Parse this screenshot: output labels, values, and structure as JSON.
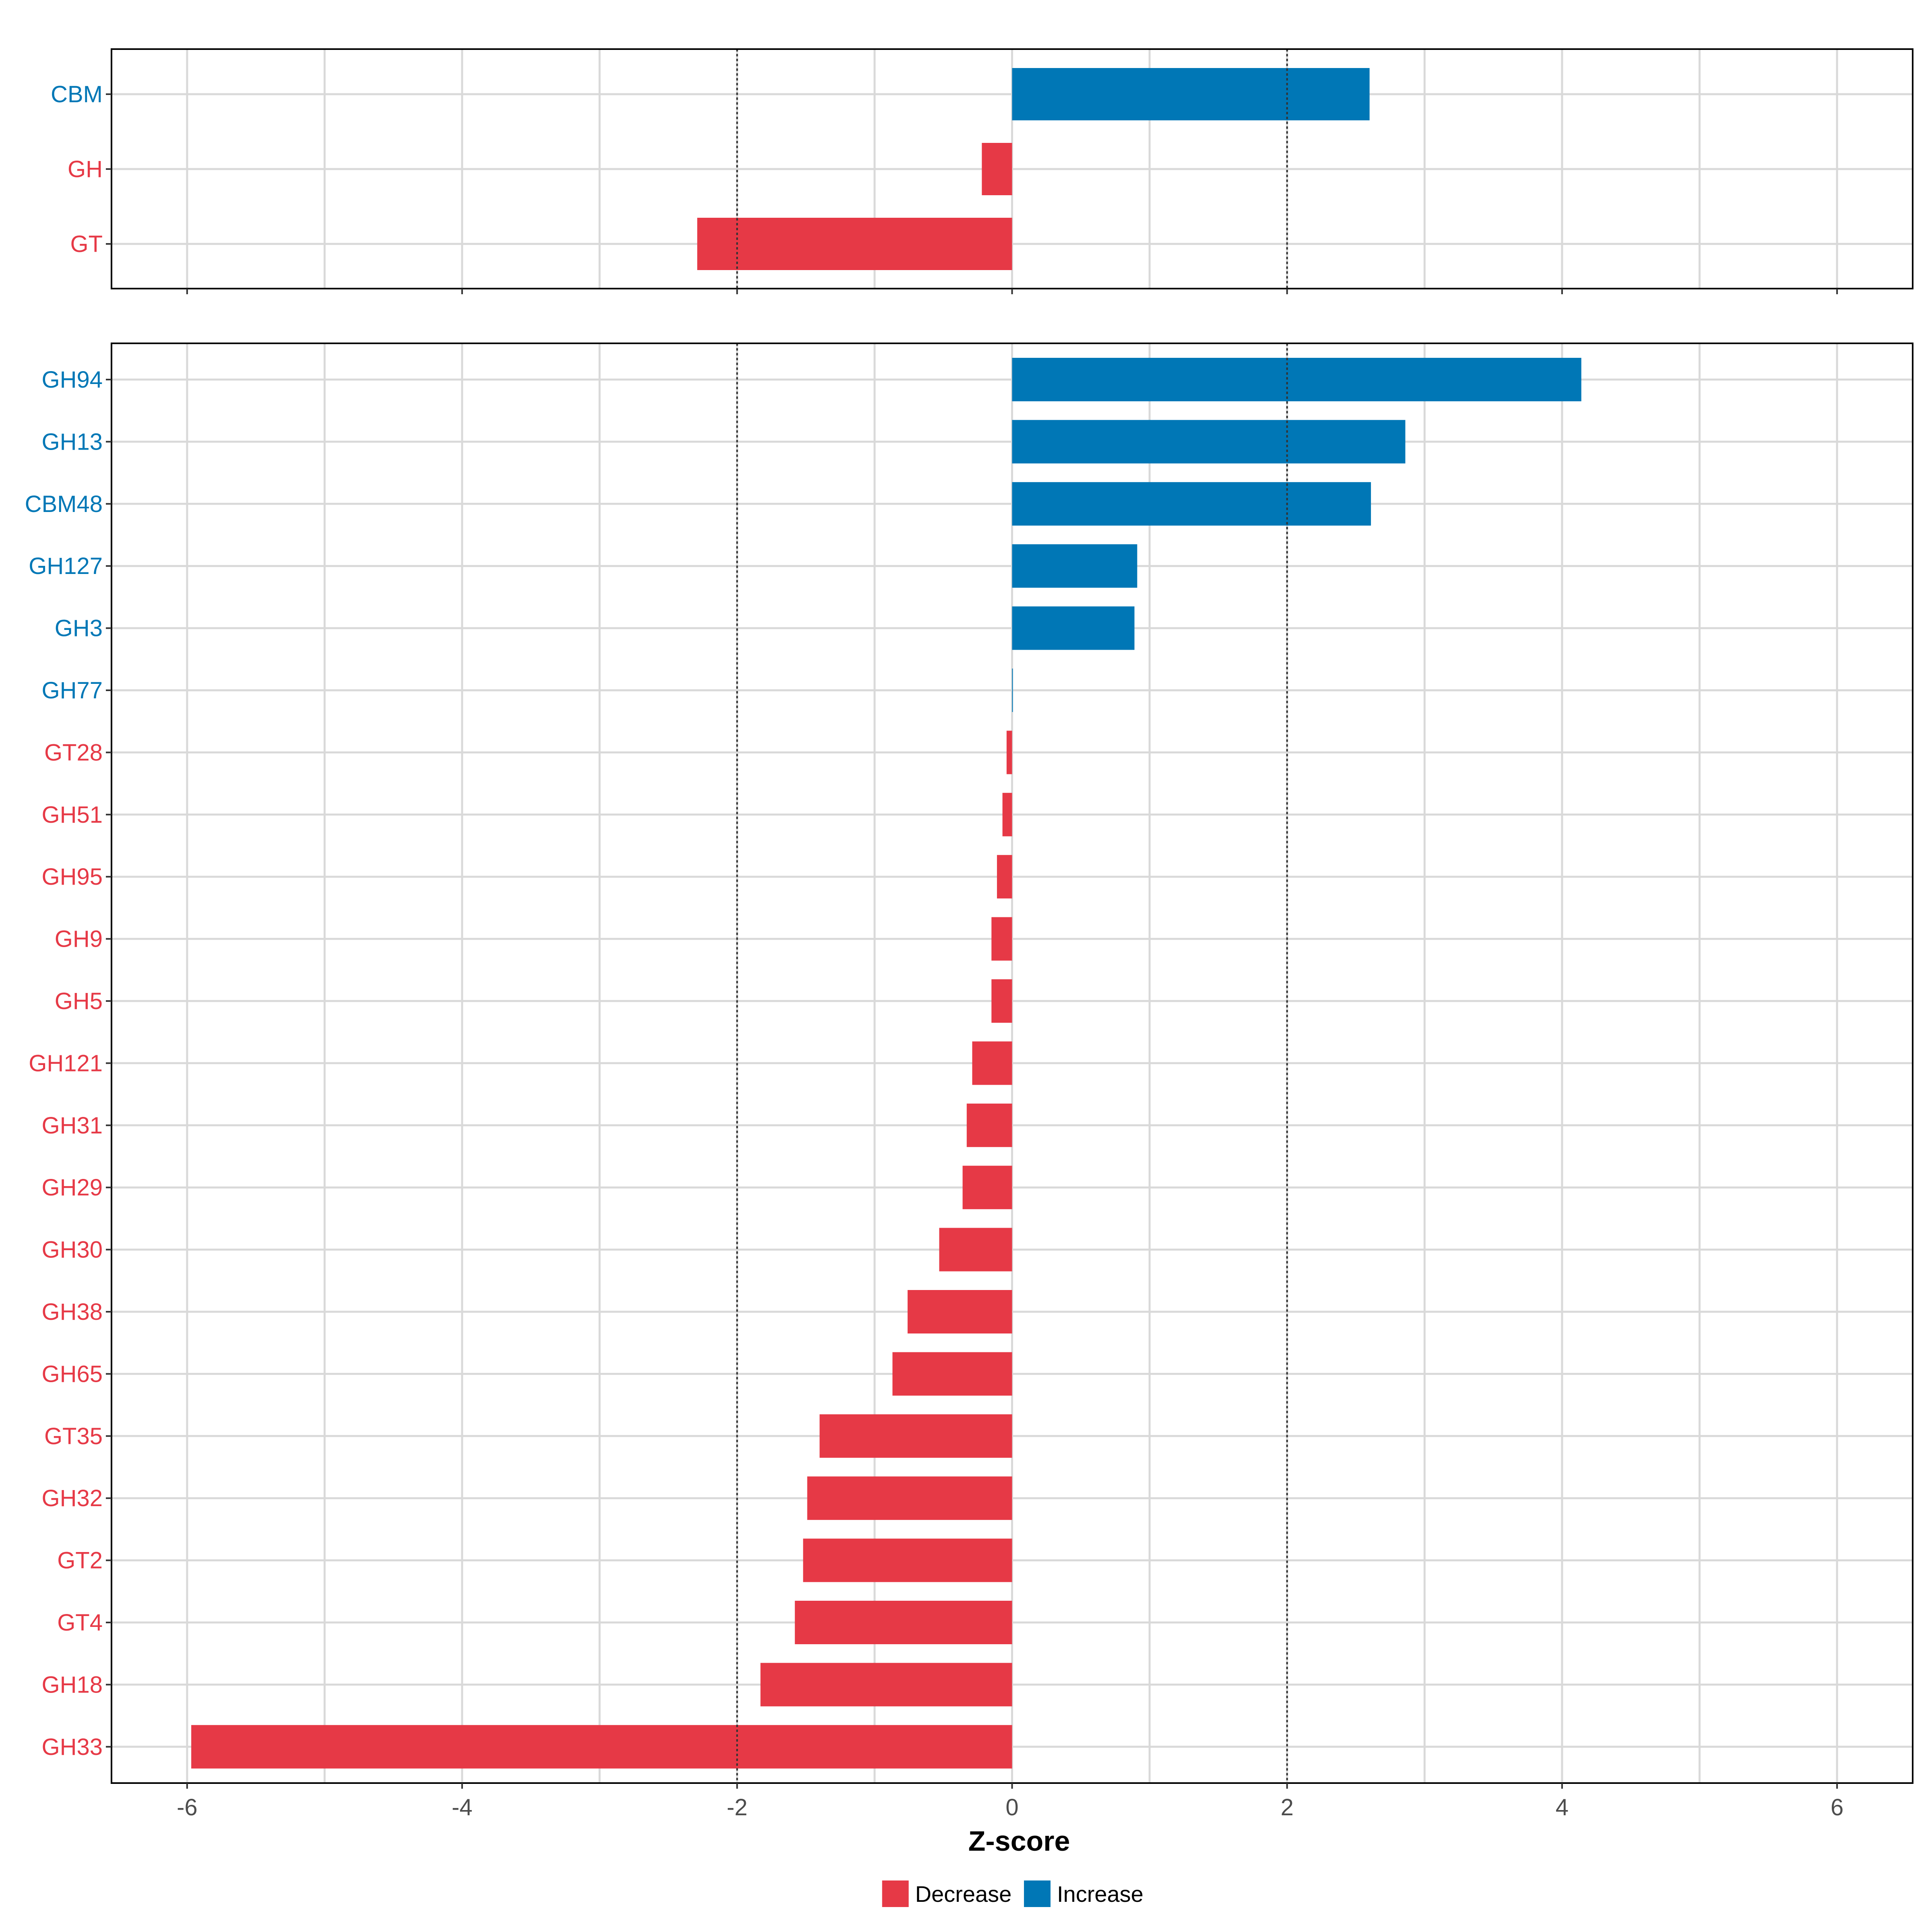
{
  "colors": {
    "decrease": "#E63946",
    "increase": "#0077B6",
    "grid": "#D9D9D9",
    "frame": "#000000",
    "threshold": "#333333",
    "tick_text": "#4D4D4D"
  },
  "chart_data": [
    {
      "type": "bar",
      "orientation": "horizontal",
      "panel": "top",
      "categories": [
        "CBM",
        "GH",
        "GT"
      ],
      "values": [
        2.6,
        -0.22,
        -2.29
      ],
      "xlim": [
        -6.55,
        6.55
      ],
      "xticks": [
        -6,
        -4,
        -2,
        0,
        2,
        4,
        6
      ],
      "thresholds": [
        -2,
        2
      ],
      "grid": true
    },
    {
      "type": "bar",
      "orientation": "horizontal",
      "panel": "bottom",
      "categories": [
        "GH94",
        "GH13",
        "CBM48",
        "GH127",
        "GH3",
        "GH77",
        "GT28",
        "GH51",
        "GH95",
        "GH9",
        "GH5",
        "GH121",
        "GH31",
        "GH29",
        "GH30",
        "GH38",
        "GH65",
        "GT35",
        "GH32",
        "GT2",
        "GT4",
        "GH18",
        "GH33"
      ],
      "values": [
        4.14,
        2.86,
        2.61,
        0.91,
        0.89,
        0.005,
        -0.04,
        -0.07,
        -0.11,
        -0.15,
        -0.15,
        -0.29,
        -0.33,
        -0.36,
        -0.53,
        -0.76,
        -0.87,
        -1.4,
        -1.49,
        -1.52,
        -1.58,
        -1.83,
        -5.97
      ],
      "xlim": [
        -6.55,
        6.55
      ],
      "xticks": [
        -6,
        -4,
        -2,
        0,
        2,
        4,
        6
      ],
      "xtick_labels": [
        "-6",
        "-4",
        "-2",
        "0",
        "2",
        "4",
        "6"
      ],
      "xlabel": "Z-score",
      "thresholds": [
        -2,
        2
      ],
      "grid": true
    }
  ],
  "legend": {
    "placement": "bottom-center",
    "items": [
      {
        "label": "Decrease",
        "color_key": "decrease"
      },
      {
        "label": "Increase",
        "color_key": "increase"
      }
    ]
  }
}
